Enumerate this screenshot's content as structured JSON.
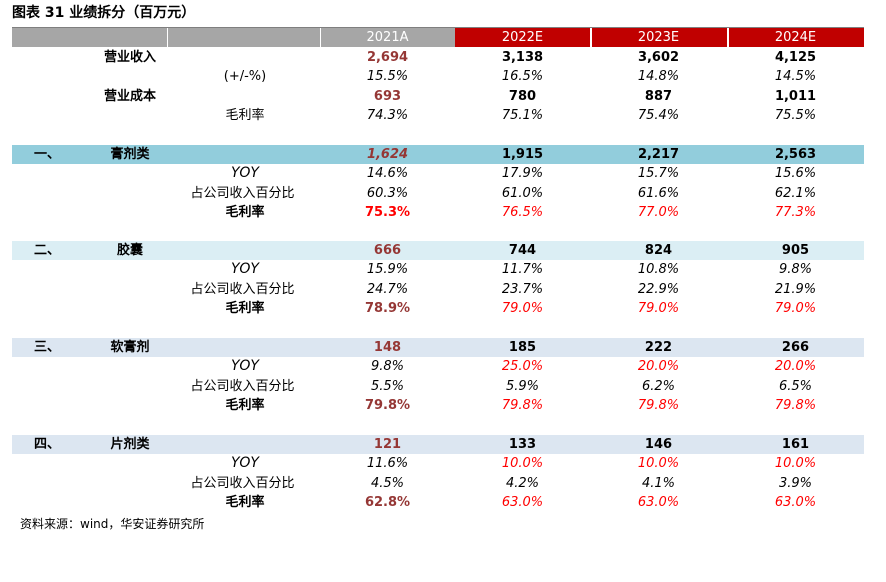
{
  "title": "图表 31 业绩拆分（百万元）",
  "header": [
    "2021A",
    "2022E",
    "2023E",
    "2024E"
  ],
  "summary": [
    {
      "label": "营业收入",
      "values": [
        "2,694",
        "3,138",
        "3,602",
        "4,125"
      ]
    },
    {
      "label": "(+/-%)",
      "values": [
        "15.5%",
        "16.5%",
        "14.8%",
        "14.5%"
      ]
    },
    {
      "label": "营业成本",
      "values": [
        "693",
        "780",
        "887",
        "1,011"
      ]
    },
    {
      "label": "毛利率",
      "values": [
        "74.3%",
        "75.1%",
        "75.4%",
        "75.5%"
      ]
    }
  ],
  "sections": [
    {
      "index": "一、",
      "name": "膏剂类",
      "values": [
        "1,624",
        "1,915",
        "2,217",
        "2,563"
      ],
      "rows": [
        {
          "label": "YOY",
          "values": [
            "14.6%",
            "17.9%",
            "15.7%",
            "15.6%"
          ]
        },
        {
          "label": "占公司收入百分比",
          "values": [
            "60.3%",
            "61.0%",
            "61.6%",
            "62.1%"
          ]
        },
        {
          "label": "毛利率",
          "values": [
            "75.3%",
            "76.5%",
            "77.0%",
            "77.3%"
          ]
        }
      ]
    },
    {
      "index": "二、",
      "name": "胶囊",
      "values": [
        "666",
        "744",
        "824",
        "905"
      ],
      "rows": [
        {
          "label": "YOY",
          "values": [
            "15.9%",
            "11.7%",
            "10.8%",
            "9.8%"
          ]
        },
        {
          "label": "占公司收入百分比",
          "values": [
            "24.7%",
            "23.7%",
            "22.9%",
            "21.9%"
          ]
        },
        {
          "label": "毛利率",
          "values": [
            "78.9%",
            "79.0%",
            "79.0%",
            "79.0%"
          ]
        }
      ]
    },
    {
      "index": "三、",
      "name": "软膏剂",
      "values": [
        "148",
        "185",
        "222",
        "266"
      ],
      "rows": [
        {
          "label": "YOY",
          "values": [
            "9.8%",
            "25.0%",
            "20.0%",
            "20.0%"
          ]
        },
        {
          "label": "占公司收入百分比",
          "values": [
            "5.5%",
            "5.9%",
            "6.2%",
            "6.5%"
          ]
        },
        {
          "label": "毛利率",
          "values": [
            "79.8%",
            "79.8%",
            "79.8%",
            "79.8%"
          ]
        }
      ]
    },
    {
      "index": "四、",
      "name": "片剂类",
      "values": [
        "121",
        "133",
        "146",
        "161"
      ],
      "rows": [
        {
          "label": "YOY",
          "values": [
            "11.6%",
            "10.0%",
            "10.0%",
            "10.0%"
          ]
        },
        {
          "label": "占公司收入百分比",
          "values": [
            "4.5%",
            "4.2%",
            "4.1%",
            "3.9%"
          ]
        },
        {
          "label": "毛利率",
          "values": [
            "62.8%",
            "63.0%",
            "63.0%",
            "63.0%"
          ]
        }
      ]
    }
  ],
  "source": "资料来源：wind，华安证券研究所"
}
